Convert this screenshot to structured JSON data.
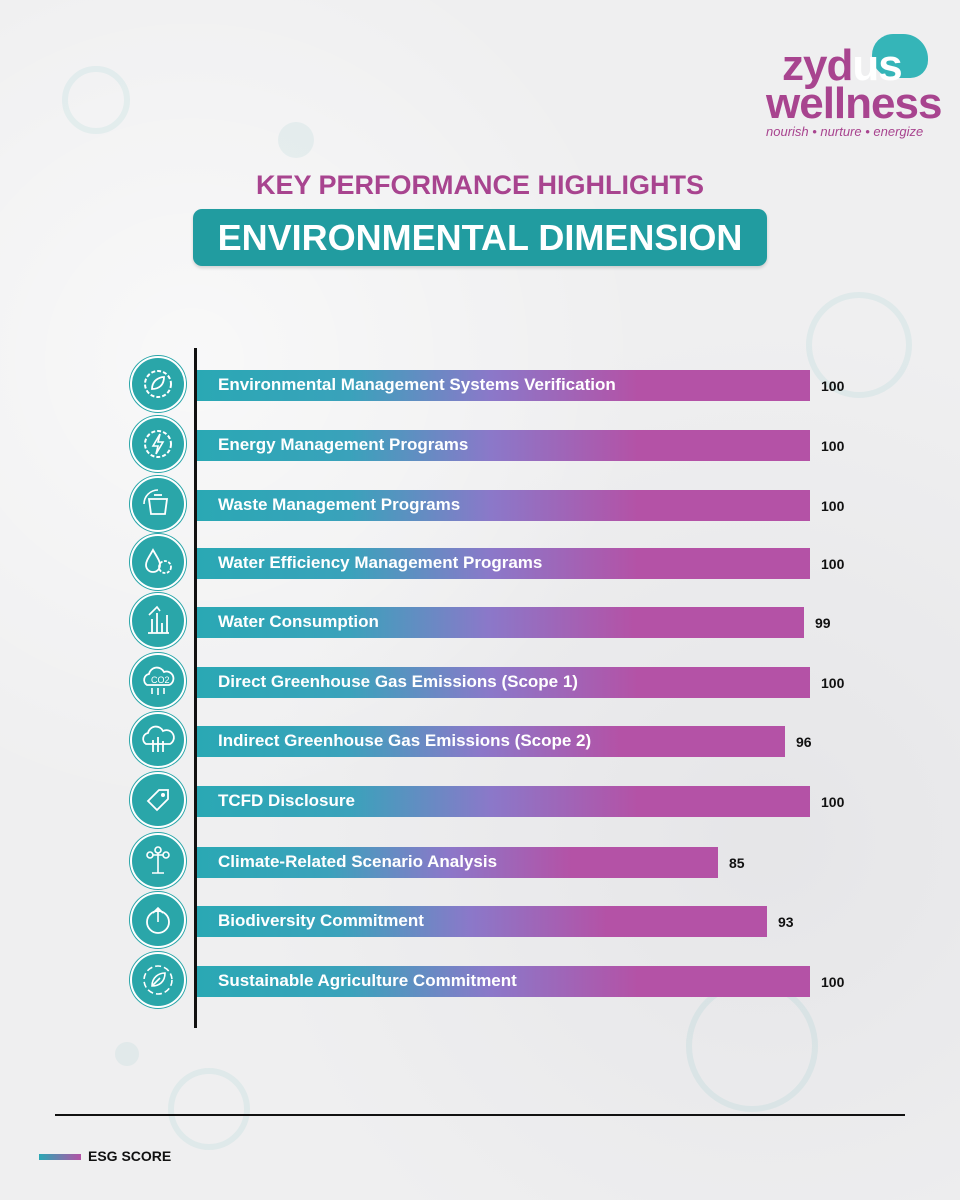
{
  "brand": {
    "name_top": "zyd",
    "name_top_highlight": "us",
    "name_bottom": "wellness",
    "tagline": "nourish • nurture • energize"
  },
  "header": {
    "kicker": "KEY PERFORMANCE HIGHLIGHTS",
    "title": "ENVIRONMENTAL DIMENSION"
  },
  "colors": {
    "teal": "#219ca0",
    "magenta": "#a8448f",
    "bar_start": "#2aa8b4",
    "bar_end": "#b452a6"
  },
  "chart_data": {
    "type": "bar",
    "orientation": "horizontal",
    "xlim": [
      0,
      100
    ],
    "grid": false,
    "series": [
      {
        "name": "ESG SCORE"
      }
    ],
    "categories": [
      "Environmental Management Systems Verification",
      "Energy Management Programs",
      "Waste Management Programs",
      "Water Efficiency Management Programs",
      "Water Consumption",
      "Direct Greenhouse Gas Emissions (Scope 1)",
      "Indirect Greenhouse Gas Emissions (Scope 2)",
      "TCFD Disclosure",
      "Climate-Related Scenario Analysis",
      "Biodiversity Commitment",
      "Sustainable Agriculture Commitment"
    ],
    "values": [
      100,
      100,
      100,
      100,
      99,
      100,
      96,
      100,
      85,
      93,
      100
    ],
    "icons": [
      "gear-leaf-icon",
      "gear-lightning-icon",
      "recycle-bin-icon",
      "water-drop-gear-icon",
      "water-growth-icon",
      "co2-cloud-icon",
      "cloud-building-icon",
      "tag-icon",
      "scenario-network-icon",
      "earth-tree-icon",
      "leaf-cycle-icon"
    ]
  },
  "legend": {
    "label": "ESG SCORE"
  }
}
